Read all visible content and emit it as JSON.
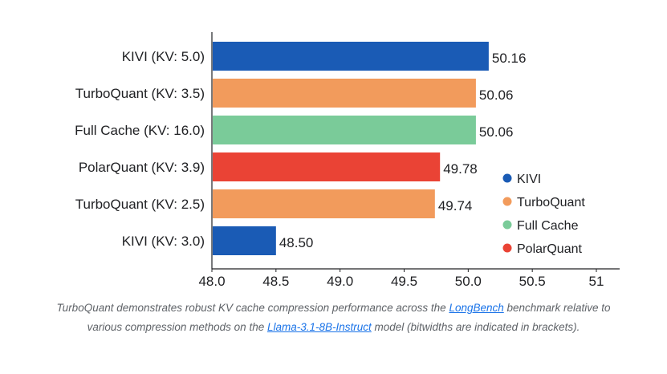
{
  "chart_data": {
    "type": "bar",
    "orientation": "horizontal",
    "categories": [
      "KIVI (KV: 5.0)",
      "TurboQuant (KV: 3.5)",
      "Full Cache (KV: 16.0)",
      "PolarQuant (KV: 3.9)",
      "TurboQuant (KV: 2.5)",
      "KIVI (KV: 3.0)"
    ],
    "values": [
      50.16,
      50.06,
      50.06,
      49.78,
      49.74,
      48.5
    ],
    "value_labels": [
      "50.16",
      "50.06",
      "50.06",
      "49.78",
      "49.74",
      "48.50"
    ],
    "bar_series": [
      "KIVI",
      "TurboQuant",
      "Full Cache",
      "PolarQuant",
      "TurboQuant",
      "KIVI"
    ],
    "xlim": [
      48.0,
      51.0
    ],
    "xticks": [
      48.0,
      48.5,
      49.0,
      49.5,
      50.0,
      50.5,
      51
    ],
    "xtick_labels": [
      "48.0",
      "48.5",
      "49.0",
      "49.5",
      "50.0",
      "50.5",
      "51"
    ],
    "grid": false,
    "legend_position": "bottom-right",
    "legend": [
      {
        "name": "KIVI",
        "color": "#1a5bb5"
      },
      {
        "name": "TurboQuant",
        "color": "#f29b5c"
      },
      {
        "name": "Full Cache",
        "color": "#7acb99"
      },
      {
        "name": "PolarQuant",
        "color": "#ea4335"
      }
    ]
  },
  "caption": {
    "part1": "TurboQuant demonstrates robust KV cache compression performance across the ",
    "link1": "LongBench",
    "part2": " benchmark relative to various compression methods on the ",
    "link2": "Llama-3.1-8B-Instruct",
    "part3": " model (bitwidths are indicated in brackets)."
  }
}
